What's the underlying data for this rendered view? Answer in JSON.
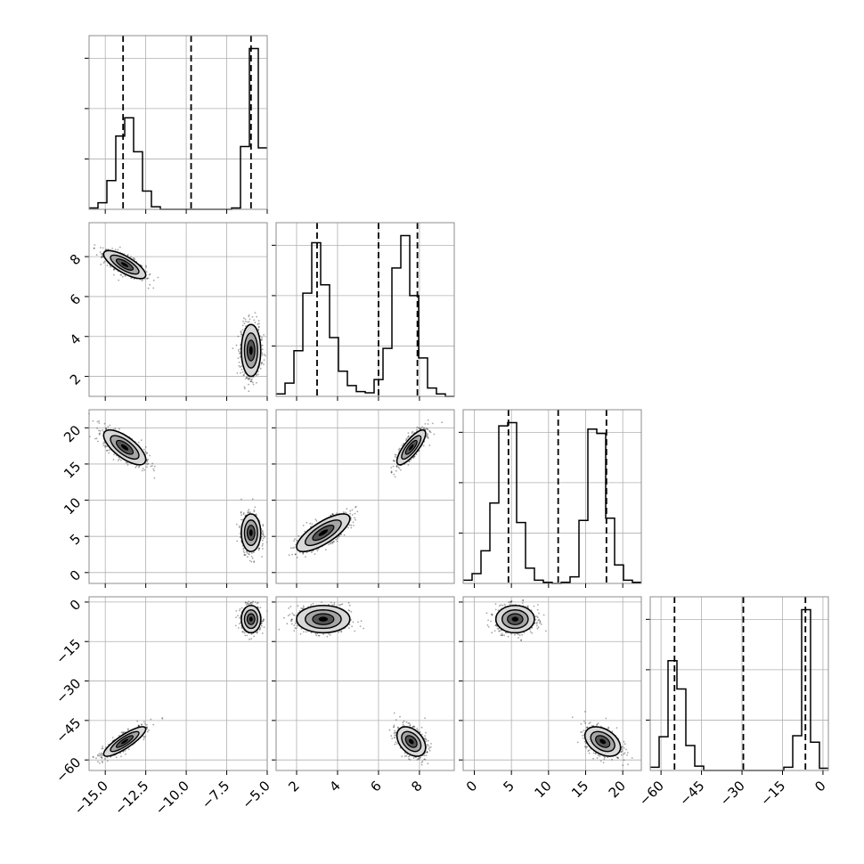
{
  "chart_data": {
    "type": "corner",
    "parameters": [
      {
        "range": [
          -16.0,
          -5.0
        ],
        "ticks": [
          -15.0,
          -12.5,
          -10.0,
          -7.5,
          -5.0
        ],
        "tick_labels": [
          "−15.0",
          "−12.5",
          "−10.0",
          "−7.5",
          "−5.0"
        ]
      },
      {
        "range": [
          1.0,
          9.7
        ],
        "ticks": [
          2,
          4,
          6,
          8
        ],
        "tick_labels": [
          "2",
          "4",
          "6",
          "8"
        ]
      },
      {
        "range": [
          -1.5,
          22.5
        ],
        "ticks": [
          0,
          5,
          10,
          15,
          20
        ],
        "tick_labels": [
          "0",
          "5",
          "10",
          "15",
          "20"
        ]
      },
      {
        "range": [
          -64.0,
          2.0
        ],
        "ticks": [
          -60,
          -45,
          -30,
          -15,
          0
        ],
        "tick_labels": [
          "−60",
          "−45",
          "−30",
          "−15",
          "0"
        ]
      }
    ],
    "modes": [
      {
        "weight": 0.5,
        "mean": [
          -13.8,
          7.6,
          17.3,
          -53.0
        ],
        "sd": [
          0.65,
          0.35,
          1.2,
          2.8
        ]
      },
      {
        "weight": 0.5,
        "mean": [
          -6.0,
          3.3,
          5.5,
          -6.5
        ],
        "sd": [
          0.3,
          0.65,
          1.3,
          2.6
        ]
      }
    ],
    "quantile_lines": [
      [
        -13.9,
        -9.7,
        -6.0
      ],
      [
        3.0,
        6.0,
        7.9
      ],
      [
        4.6,
        11.3,
        17.8
      ],
      [
        -55.0,
        -29.5,
        -6.5
      ]
    ],
    "histograms": [
      {
        "edges": [
          -16.0,
          -15.45,
          -14.9,
          -14.35,
          -13.8,
          -13.25,
          -12.7,
          -12.15,
          -11.6,
          -11.05,
          -10.5,
          -9.95,
          -9.4,
          -8.85,
          -8.3,
          -7.75,
          -7.2,
          -6.65,
          -6.1,
          -5.55,
          -5.0
        ],
        "counts": [
          1,
          5,
          22,
          56,
          70,
          44,
          14,
          2,
          0,
          0,
          0,
          0,
          0,
          0,
          0,
          0,
          1,
          48,
          123,
          47
        ]
      },
      {
        "edges": [
          1.0,
          1.435,
          1.87,
          2.305,
          2.74,
          3.175,
          3.61,
          4.045,
          4.48,
          4.915,
          5.35,
          5.785,
          6.22,
          6.655,
          7.09,
          7.525,
          7.96,
          8.395,
          8.83,
          9.265,
          9.7
        ],
        "counts": [
          2,
          11,
          38,
          86,
          128,
          93,
          49,
          21,
          9,
          4,
          3,
          14,
          40,
          107,
          134,
          84,
          32,
          7,
          2,
          0
        ]
      },
      {
        "edges": [
          -1.5,
          -0.3,
          0.9,
          2.1,
          3.3,
          4.5,
          5.7,
          6.9,
          8.1,
          9.3,
          10.5,
          11.7,
          12.9,
          14.1,
          15.3,
          16.5,
          17.7,
          18.9,
          20.1,
          21.3,
          22.5
        ],
        "counts": [
          3,
          9,
          30,
          74,
          145,
          148,
          56,
          14,
          3,
          1,
          0,
          1,
          6,
          58,
          142,
          138,
          60,
          17,
          3,
          1
        ]
      },
      {
        "edges": [
          -64.0,
          -60.7,
          -57.4,
          -54.1,
          -50.8,
          -47.5,
          -44.2,
          -40.9,
          -37.6,
          -34.3,
          -31.0,
          -27.7,
          -24.4,
          -21.1,
          -17.8,
          -14.5,
          -11.2,
          -7.9,
          -4.6,
          -1.3,
          2.0
        ],
        "counts": [
          3,
          31,
          101,
          75,
          23,
          4,
          0,
          0,
          0,
          0,
          0,
          0,
          0,
          0,
          0,
          3,
          32,
          148,
          26,
          2
        ]
      }
    ],
    "grid": true,
    "title": "",
    "labels": [
      "",
      "",
      "",
      ""
    ]
  }
}
